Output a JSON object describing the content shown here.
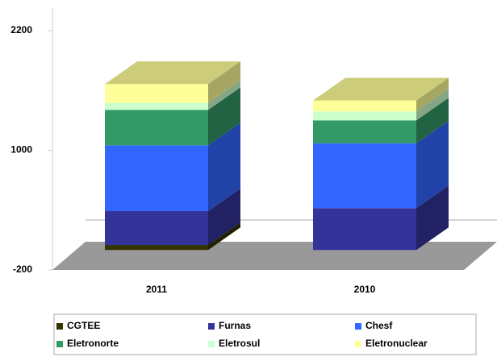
{
  "chart_data": {
    "type": "bar3d_stacked",
    "categories": [
      "2011",
      "2010"
    ],
    "series": [
      {
        "name": "CGTEE",
        "color": "#333300",
        "values": [
          50,
          0
        ]
      },
      {
        "name": "Furnas",
        "color": "#333399",
        "values": [
          340,
          420
        ]
      },
      {
        "name": "Chesf",
        "color": "#3366ff",
        "values": [
          660,
          650
        ]
      },
      {
        "name": "Eletronorte",
        "color": "#339966",
        "values": [
          355,
          230
        ]
      },
      {
        "name": "Eletrosul",
        "color": "#ccffcc",
        "values": [
          70,
          90
        ]
      },
      {
        "name": "Eletronuclear",
        "color": "#ffff99",
        "values": [
          190,
          110
        ]
      }
    ],
    "ylim": [
      -200,
      2200
    ],
    "yticks": [
      -200,
      1000,
      2200
    ],
    "legend": "bottom"
  }
}
